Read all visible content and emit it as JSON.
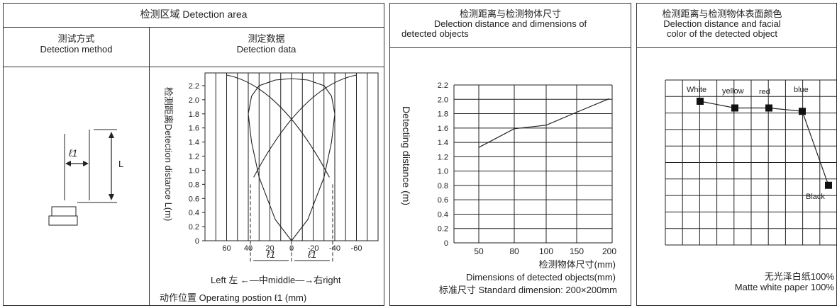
{
  "panel1": {
    "title": "检测区域 Detection area",
    "method_cn": "测试方式",
    "method_en": "Detection method",
    "data_cn": "测定数据",
    "data_en": "Detection data",
    "l1_label": "ℓ1",
    "L_label": "L",
    "ylabel": "检测距离Detection distance L(m)",
    "yticks": [
      "2.2",
      "2.0",
      "1.8",
      "1.6",
      "1.4",
      "1.2",
      "1.0",
      "0.8",
      "0.6",
      "0.4",
      "0.2",
      "0"
    ],
    "xticks": [
      "60",
      "40",
      "20",
      "0",
      "-20",
      "-40",
      "-60"
    ],
    "l1_a": "ℓ1",
    "l1_b": "ℓ1",
    "direction": "Left 左 ←—中middle—→右right",
    "xlabel": "动作位置 Operating postion ℓ1  (mm)"
  },
  "panel2": {
    "title_cn": "检测距离与检测物体尺寸",
    "title_en1": "Delection distance and dimensions of",
    "title_en2": "detected objects",
    "ylabel": "Detecting distance (m)",
    "yticks": [
      "2.2",
      "2.0",
      "1.8",
      "1.6",
      "1.4",
      "1.2",
      "1.0",
      "0.8",
      "0.6",
      "0.4",
      "0.2",
      "0"
    ],
    "xticks": [
      "50",
      "80",
      "100",
      "150",
      "200"
    ],
    "xlabel_cn": "检测物体尺寸(mm)",
    "xlabel_en": "Dimensions of detected objects(mm)",
    "standard": "标准尺寸 Standard dimension: 200×200mm"
  },
  "panel3": {
    "title_cn": "检测距离与检测物体表面颜色",
    "title_en1": "Delection distance and facial",
    "title_en2": "color of the detected object",
    "color_labels": [
      "White",
      "yellow",
      "red",
      "blue",
      "Black"
    ],
    "paper_cn": "无光泽白纸100%",
    "paper_en": "Matte white paper 100%"
  },
  "chart_data": [
    {
      "type": "line",
      "title": "检测区域 Detection area",
      "xlabel": "动作位置 Operating postion ℓ1  (mm)",
      "ylabel": "检测距离Detection distance L(m)",
      "xlim": [
        80,
        -80
      ],
      "ylim": [
        0,
        2.3
      ],
      "series": [
        {
          "x": [
            0,
            15,
            30,
            37,
            40,
            37,
            30,
            15,
            0
          ],
          "y": [
            0,
            0.3,
            0.9,
            1.4,
            1.8,
            2.05,
            2.2,
            2.28,
            2.3
          ]
        },
        {
          "x": [
            0,
            -15,
            -30,
            -37,
            -40,
            -37,
            -30,
            -15,
            0
          ],
          "y": [
            0,
            0.3,
            0.9,
            1.4,
            1.8,
            2.05,
            2.2,
            2.28,
            2.3
          ]
        }
      ]
    },
    {
      "type": "line",
      "title": "检测距离与检测物体尺寸",
      "xlabel": "检测物体尺寸(mm)",
      "ylabel": "Detecting distance (m)",
      "categories": [
        "50",
        "80",
        "100",
        "150",
        "200"
      ],
      "values": [
        1.33,
        1.59,
        1.64,
        1.82,
        2.01
      ],
      "ylim": [
        0,
        2.2
      ]
    },
    {
      "type": "line",
      "title": "检测距离与检测物体表面颜色",
      "categories": [
        "White",
        "yellow",
        "red",
        "blue",
        "Black"
      ],
      "values": [
        2.0,
        1.9,
        1.9,
        1.85,
        0.75
      ]
    }
  ]
}
